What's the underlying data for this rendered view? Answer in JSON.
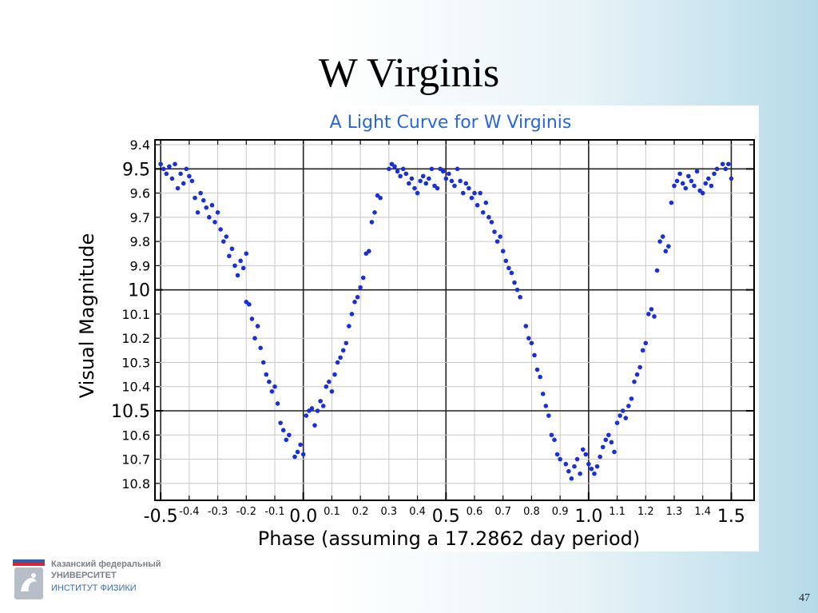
{
  "slide": {
    "title": "W Virginis",
    "page_number": "47"
  },
  "logo": {
    "line1": "Казанский федеральный",
    "line2": "УНИВЕРСИТЕТ",
    "line3": "ИНСТИТУТ ФИЗИКИ"
  },
  "chart_data": {
    "type": "scatter",
    "title": "A Light Curve for W Virginis",
    "xlabel": "Phase (assuming a 17.2862 day period)",
    "ylabel": "Visual Magnitude",
    "xlim": [
      -0.52,
      1.58
    ],
    "ylim": [
      10.87,
      9.38
    ],
    "y_inverted": true,
    "grid": true,
    "marker_color": "#1a2fd6",
    "x_major_ticks": [
      "-0.5",
      "0.0",
      "0.5",
      "1.0",
      "1.5"
    ],
    "x_minor_ticks": [
      "-0.4",
      "-0.3",
      "-0.2",
      "-0.1",
      "0.1",
      "0.2",
      "0.3",
      "0.4",
      "0.6",
      "0.7",
      "0.8",
      "0.9",
      "1.1",
      "1.2",
      "1.3",
      "1.4"
    ],
    "y_major_ticks": [
      "9.5",
      "10",
      "10.5"
    ],
    "y_minor_ticks": [
      "9.4",
      "9.6",
      "9.7",
      "9.8",
      "9.9",
      "10.1",
      "10.2",
      "10.3",
      "10.4",
      "10.6",
      "10.7",
      "10.8"
    ],
    "series": [
      {
        "points": [
          [
            -0.5,
            9.48
          ],
          [
            -0.49,
            9.5
          ],
          [
            -0.48,
            9.52
          ],
          [
            -0.47,
            9.49
          ],
          [
            -0.46,
            9.54
          ],
          [
            -0.45,
            9.48
          ],
          [
            -0.44,
            9.58
          ],
          [
            -0.43,
            9.52
          ],
          [
            -0.42,
            9.56
          ],
          [
            -0.41,
            9.5
          ],
          [
            -0.4,
            9.53
          ],
          [
            -0.39,
            9.55
          ],
          [
            -0.38,
            9.62
          ],
          [
            -0.37,
            9.68
          ],
          [
            -0.36,
            9.6
          ],
          [
            -0.35,
            9.63
          ],
          [
            -0.34,
            9.66
          ],
          [
            -0.33,
            9.7
          ],
          [
            -0.32,
            9.65
          ],
          [
            -0.31,
            9.72
          ],
          [
            -0.3,
            9.68
          ],
          [
            -0.29,
            9.75
          ],
          [
            -0.28,
            9.8
          ],
          [
            -0.27,
            9.78
          ],
          [
            -0.26,
            9.86
          ],
          [
            -0.25,
            9.83
          ],
          [
            -0.24,
            9.9
          ],
          [
            -0.23,
            9.94
          ],
          [
            -0.22,
            9.88
          ],
          [
            -0.21,
            9.91
          ],
          [
            -0.2,
            9.85
          ],
          [
            -0.2,
            10.05
          ],
          [
            -0.19,
            10.06
          ],
          [
            -0.18,
            10.12
          ],
          [
            -0.17,
            10.2
          ],
          [
            -0.16,
            10.15
          ],
          [
            -0.15,
            10.24
          ],
          [
            -0.14,
            10.3
          ],
          [
            -0.13,
            10.35
          ],
          [
            -0.12,
            10.38
          ],
          [
            -0.11,
            10.42
          ],
          [
            -0.1,
            10.4
          ],
          [
            -0.09,
            10.47
          ],
          [
            -0.08,
            10.55
          ],
          [
            -0.07,
            10.58
          ],
          [
            -0.06,
            10.62
          ],
          [
            -0.05,
            10.6
          ],
          [
            -0.03,
            10.69
          ],
          [
            -0.02,
            10.67
          ],
          [
            -0.01,
            10.64
          ],
          [
            0.0,
            10.68
          ],
          [
            0.01,
            10.52
          ],
          [
            0.02,
            10.5
          ],
          [
            0.03,
            10.49
          ],
          [
            0.04,
            10.56
          ],
          [
            0.05,
            10.5
          ],
          [
            0.06,
            10.46
          ],
          [
            0.07,
            10.48
          ],
          [
            0.08,
            10.4
          ],
          [
            0.09,
            10.38
          ],
          [
            0.1,
            10.42
          ],
          [
            0.11,
            10.35
          ],
          [
            0.12,
            10.3
          ],
          [
            0.13,
            10.28
          ],
          [
            0.14,
            10.25
          ],
          [
            0.15,
            10.22
          ],
          [
            0.16,
            10.15
          ],
          [
            0.17,
            10.1
          ],
          [
            0.18,
            10.05
          ],
          [
            0.19,
            10.03
          ],
          [
            0.2,
            9.99
          ],
          [
            0.21,
            9.95
          ],
          [
            0.22,
            9.85
          ],
          [
            0.23,
            9.84
          ],
          [
            0.24,
            9.72
          ],
          [
            0.25,
            9.68
          ],
          [
            0.26,
            9.61
          ],
          [
            0.27,
            9.62
          ],
          [
            0.3,
            9.5
          ],
          [
            0.31,
            9.48
          ],
          [
            0.32,
            9.49
          ],
          [
            0.33,
            9.51
          ],
          [
            0.34,
            9.53
          ],
          [
            0.35,
            9.5
          ],
          [
            0.36,
            9.52
          ],
          [
            0.37,
            9.56
          ],
          [
            0.38,
            9.54
          ],
          [
            0.39,
            9.58
          ],
          [
            0.4,
            9.6
          ],
          [
            0.41,
            9.55
          ],
          [
            0.42,
            9.53
          ],
          [
            0.43,
            9.56
          ],
          [
            0.44,
            9.54
          ],
          [
            0.45,
            9.5
          ],
          [
            0.46,
            9.57
          ],
          [
            0.47,
            9.58
          ],
          [
            0.48,
            9.5
          ],
          [
            0.49,
            9.51
          ],
          [
            0.5,
            9.54
          ],
          [
            0.51,
            9.52
          ],
          [
            0.52,
            9.55
          ],
          [
            0.53,
            9.57
          ],
          [
            0.54,
            9.5
          ],
          [
            0.55,
            9.55
          ],
          [
            0.56,
            9.6
          ],
          [
            0.57,
            9.56
          ],
          [
            0.58,
            9.58
          ],
          [
            0.59,
            9.62
          ],
          [
            0.6,
            9.6
          ],
          [
            0.61,
            9.65
          ],
          [
            0.62,
            9.6
          ],
          [
            0.63,
            9.68
          ],
          [
            0.64,
            9.64
          ],
          [
            0.65,
            9.7
          ],
          [
            0.66,
            9.72
          ],
          [
            0.67,
            9.76
          ],
          [
            0.68,
            9.8
          ],
          [
            0.69,
            9.78
          ],
          [
            0.7,
            9.84
          ],
          [
            0.71,
            9.88
          ],
          [
            0.72,
            9.91
          ],
          [
            0.73,
            9.93
          ],
          [
            0.74,
            9.97
          ],
          [
            0.75,
            10.0
          ],
          [
            0.76,
            10.03
          ],
          [
            0.78,
            10.15
          ],
          [
            0.79,
            10.2
          ],
          [
            0.8,
            10.22
          ],
          [
            0.81,
            10.27
          ],
          [
            0.82,
            10.33
          ],
          [
            0.83,
            10.36
          ],
          [
            0.84,
            10.43
          ],
          [
            0.85,
            10.48
          ],
          [
            0.86,
            10.52
          ],
          [
            0.87,
            10.6
          ],
          [
            0.88,
            10.62
          ],
          [
            0.89,
            10.68
          ],
          [
            0.9,
            10.7
          ],
          [
            0.92,
            10.72
          ],
          [
            0.93,
            10.75
          ],
          [
            0.94,
            10.78
          ],
          [
            0.95,
            10.73
          ],
          [
            0.96,
            10.7
          ],
          [
            0.97,
            10.76
          ],
          [
            0.98,
            10.66
          ],
          [
            0.99,
            10.68
          ],
          [
            1.0,
            10.72
          ],
          [
            1.01,
            10.74
          ],
          [
            1.02,
            10.76
          ],
          [
            1.03,
            10.73
          ],
          [
            1.04,
            10.69
          ],
          [
            1.05,
            10.65
          ],
          [
            1.06,
            10.62
          ],
          [
            1.07,
            10.6
          ],
          [
            1.08,
            10.63
          ],
          [
            1.09,
            10.67
          ],
          [
            1.1,
            10.55
          ],
          [
            1.11,
            10.52
          ],
          [
            1.12,
            10.5
          ],
          [
            1.13,
            10.53
          ],
          [
            1.14,
            10.48
          ],
          [
            1.15,
            10.45
          ],
          [
            1.16,
            10.38
          ],
          [
            1.17,
            10.35
          ],
          [
            1.18,
            10.32
          ],
          [
            1.19,
            10.25
          ],
          [
            1.2,
            10.22
          ],
          [
            1.21,
            10.1
          ],
          [
            1.22,
            10.08
          ],
          [
            1.23,
            10.11
          ],
          [
            1.24,
            9.92
          ],
          [
            1.25,
            9.8
          ],
          [
            1.26,
            9.78
          ],
          [
            1.27,
            9.84
          ],
          [
            1.28,
            9.82
          ],
          [
            1.29,
            9.64
          ],
          [
            1.3,
            9.57
          ],
          [
            1.31,
            9.55
          ],
          [
            1.32,
            9.52
          ],
          [
            1.33,
            9.56
          ],
          [
            1.34,
            9.58
          ],
          [
            1.35,
            9.53
          ],
          [
            1.36,
            9.55
          ],
          [
            1.37,
            9.57
          ],
          [
            1.38,
            9.51
          ],
          [
            1.39,
            9.59
          ],
          [
            1.4,
            9.6
          ],
          [
            1.41,
            9.56
          ],
          [
            1.42,
            9.54
          ],
          [
            1.43,
            9.57
          ],
          [
            1.44,
            9.52
          ],
          [
            1.45,
            9.5
          ],
          [
            1.47,
            9.48
          ],
          [
            1.48,
            9.5
          ],
          [
            1.49,
            9.48
          ],
          [
            1.5,
            9.54
          ]
        ]
      }
    ]
  }
}
